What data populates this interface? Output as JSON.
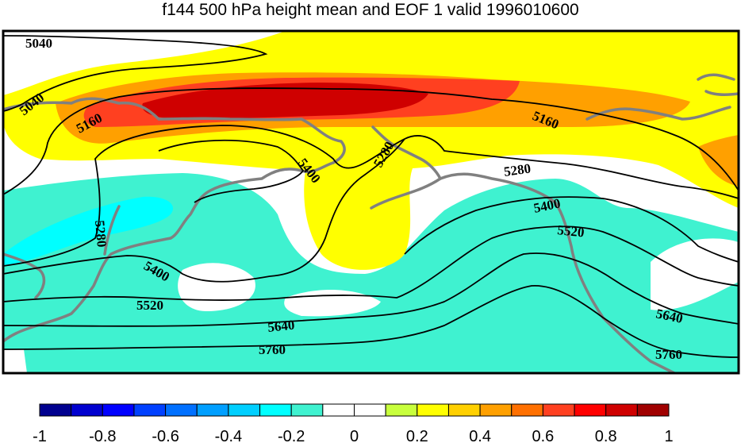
{
  "title": "f144 500 hPa height mean and EOF 1 valid 1996010600",
  "colorbar": {
    "colors": [
      "#00008f",
      "#0000cf",
      "#0000ff",
      "#0040ff",
      "#0070ff",
      "#009fff",
      "#00cfff",
      "#00ffff",
      "#3ff2d0",
      "#ffffff",
      "#ffffff",
      "#c8ff3c",
      "#ffff00",
      "#ffd000",
      "#ffa000",
      "#ff7000",
      "#ff4020",
      "#ff0000",
      "#cf0000",
      "#a00000"
    ],
    "tick_labels": [
      "-1",
      "-0.8",
      "-0.6",
      "-0.4",
      "-0.2",
      "0",
      "0.2",
      "0.4",
      "0.6",
      "0.8",
      "1"
    ]
  },
  "contour_labels": [
    "5040",
    "5040",
    "5160",
    "5160",
    "5280",
    "5280",
    "5280",
    "5400",
    "5400",
    "5400",
    "5520",
    "5520",
    "5640",
    "5640",
    "5760",
    "5760"
  ],
  "colors": {
    "land_outline": "#808080",
    "contour_line": "#000000",
    "positive_fill": "#ffff00",
    "negative_fill": "#3ff2d0"
  }
}
